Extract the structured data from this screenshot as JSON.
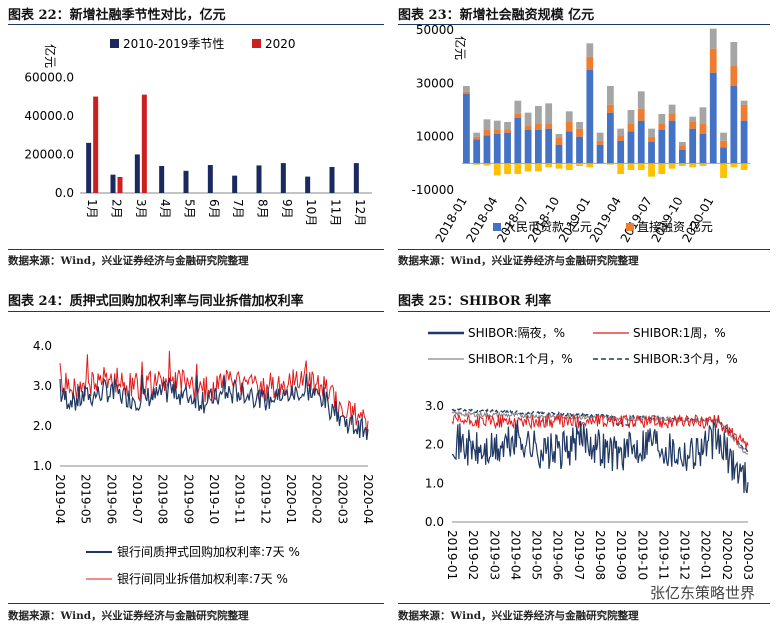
{
  "panels": [
    {
      "title": "图表 22：新增社融季节性对比，亿元",
      "source": "数据来源：Wind，兴业证券经济与金融研究院整理"
    },
    {
      "title": "图表 23：新增社会融资规模  亿元",
      "source": "数据来源：Wind，兴业证券经济与金融研究院整理"
    },
    {
      "title": "图表 24：质押式回购加权利率与同业拆借加权利率",
      "source": "数据来源：Wind，兴业证券经济与金融研究院整理"
    },
    {
      "title": "图表 25：SHIBOR 利率",
      "source": "数据来源：Wind，兴业证券经济与金融研究院整理"
    }
  ],
  "watermark": "张亿东策略世界",
  "chart_data": [
    {
      "type": "bar",
      "ylabel": "亿元",
      "ylim": [
        0,
        70000
      ],
      "yticks": [
        "0.0",
        "20000.0",
        "40000.0",
        "60000.0"
      ],
      "categories": [
        "1月",
        "2月",
        "3月",
        "4月",
        "5月",
        "6月",
        "7月",
        "8月",
        "9月",
        "10月",
        "11月",
        "12月"
      ],
      "series": [
        {
          "name": "2010-2019季节性",
          "color": "#1a2a5e",
          "values": [
            26000,
            9500,
            20000,
            14000,
            11500,
            14500,
            9000,
            14300,
            15500,
            8500,
            13500,
            15500
          ]
        },
        {
          "name": "2020",
          "color": "#cc1f1f",
          "values": [
            50000,
            8300,
            51000,
            null,
            null,
            null,
            null,
            null,
            null,
            null,
            null,
            null
          ]
        }
      ]
    },
    {
      "type": "bar",
      "stacked": true,
      "ylabel": "亿元",
      "ylim": [
        -10000,
        50000
      ],
      "yticks": [
        "-10000",
        "10000",
        "30000",
        "50000"
      ],
      "xticks": [
        "2018-01",
        "2018-04",
        "2018-07",
        "2018-10",
        "2019-01",
        "2019-04",
        "2019-07",
        "2019-10",
        "2020-01"
      ],
      "legend": [
        "人民币贷款  亿元",
        "直接融资  亿元"
      ],
      "series_colors": {
        "loans": "#4472c4",
        "direct": "#ed7d31",
        "other": "#a5a5a5",
        "neg": "#ffc000"
      },
      "months": [
        "2018-01",
        "2018-02",
        "2018-03",
        "2018-04",
        "2018-05",
        "2018-06",
        "2018-07",
        "2018-08",
        "2018-09",
        "2018-10",
        "2018-11",
        "2018-12",
        "2019-01",
        "2019-02",
        "2019-03",
        "2019-04",
        "2019-05",
        "2019-06",
        "2019-07",
        "2019-08",
        "2019-09",
        "2019-10",
        "2019-11",
        "2019-12",
        "2020-01",
        "2020-02",
        "2020-03",
        "2020-04"
      ],
      "loans": [
        26000,
        9000,
        10500,
        11000,
        11500,
        17000,
        12500,
        12500,
        13000,
        7000,
        12000,
        10000,
        35000,
        7000,
        19000,
        8500,
        12000,
        16000,
        8000,
        12500,
        16000,
        5000,
        13000,
        11000,
        34000,
        6000,
        29000,
        16000
      ],
      "direct": [
        1000,
        1000,
        2000,
        1500,
        1000,
        1500,
        1500,
        2500,
        2000,
        2500,
        3500,
        3000,
        5000,
        1500,
        3000,
        2000,
        3000,
        4500,
        2000,
        2500,
        2500,
        1500,
        2500,
        4000,
        9000,
        2500,
        7500,
        6000
      ],
      "other": [
        2000,
        1500,
        4000,
        3500,
        3000,
        5000,
        5000,
        6500,
        7500,
        1500,
        4000,
        2500,
        5000,
        3000,
        7000,
        2500,
        5000,
        6500,
        3000,
        3500,
        3500,
        1500,
        2000,
        6000,
        7500,
        3000,
        9000,
        1500
      ],
      "neg": [
        0,
        -500,
        -800,
        -4500,
        -4000,
        -4000,
        -3000,
        -3000,
        -1500,
        -2000,
        -2500,
        -1000,
        -1500,
        0,
        -500,
        -4000,
        -2500,
        -2500,
        -5000,
        -4000,
        -2000,
        -1000,
        -1500,
        -1000,
        0,
        -5500,
        -1500,
        -2500
      ]
    },
    {
      "type": "line",
      "ylim": [
        1.0,
        4.0
      ],
      "yticks": [
        "1.0",
        "2.0",
        "3.0",
        "4.0"
      ],
      "xticks": [
        "2019-04",
        "2019-05",
        "2019-06",
        "2019-07",
        "2019-08",
        "2019-09",
        "2019-10",
        "2019-11",
        "2019-12",
        "2020-01",
        "2020-02",
        "2020-03",
        "2020-04"
      ],
      "series": [
        {
          "name": "银行间质押式回购加权利率:7天  %",
          "color": "#1f3864",
          "base": 2.75,
          "vol": 0.28
        },
        {
          "name": "银行间同业拆借加权利率:7天  %",
          "color": "#e31a1c",
          "base": 3.05,
          "vol": 0.33
        }
      ]
    },
    {
      "type": "line",
      "ylim": [
        0.0,
        3.0
      ],
      "yticks": [
        "0.0",
        "1.0",
        "2.0",
        "3.0"
      ],
      "xticks": [
        "2019-01",
        "2019-02",
        "2019-03",
        "2019-04",
        "2019-05",
        "2019-06",
        "2019-07",
        "2019-08",
        "2019-09",
        "2019-10",
        "2019-11",
        "2019-12",
        "2020-01",
        "2020-02",
        "2020-03"
      ],
      "series": [
        {
          "name": "SHIBOR:隔夜，%",
          "color": "#1f3864",
          "style": "solid"
        },
        {
          "name": "SHIBOR:1周，%",
          "color": "#e31a1c",
          "style": "solid"
        },
        {
          "name": "SHIBOR:1个月，%",
          "color": "#888888",
          "style": "solid"
        },
        {
          "name": "SHIBOR:3个月，%",
          "color": "#1f3864",
          "style": "dashed"
        }
      ]
    }
  ]
}
